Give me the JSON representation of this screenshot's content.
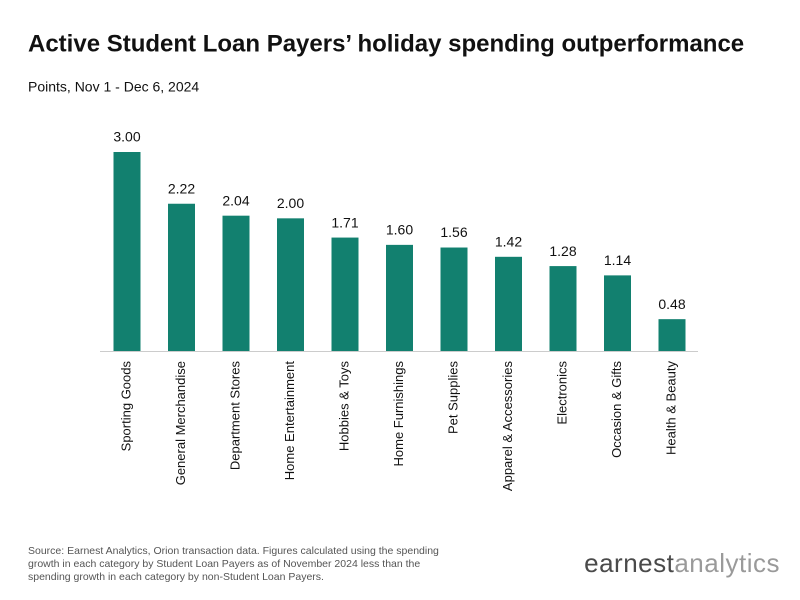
{
  "chart_data": {
    "type": "bar",
    "title": "Active Student Loan Payers’ holiday spending outperformance",
    "subtitle": "Points, Nov 1 - Dec 6, 2024",
    "categories": [
      "Sporting Goods",
      "General Merchandise",
      "Department Stores",
      "Home Entertainment",
      "Hobbies & Toys",
      "Home Furnishings",
      "Pet Supplies",
      "Apparel & Accessories",
      "Electronics",
      "Occasion & Gifts",
      "Health & Beauty"
    ],
    "values": [
      3.0,
      2.22,
      2.04,
      2.0,
      1.71,
      1.6,
      1.56,
      1.42,
      1.28,
      1.14,
      0.48
    ],
    "value_labels": [
      "3.00",
      "2.22",
      "2.04",
      "2.00",
      "1.71",
      "1.60",
      "1.56",
      "1.42",
      "1.28",
      "1.14",
      "0.48"
    ],
    "color": "#12806f",
    "source": "Source: Earnest Analytics, Orion transaction data. Figures calculated using the spending growth in each category by Student Loan Payers as of November 2024 less than the spending growth in each category by non-Student Loan Payers.",
    "brand": {
      "first": "earnest",
      "second": "analytics"
    }
  }
}
